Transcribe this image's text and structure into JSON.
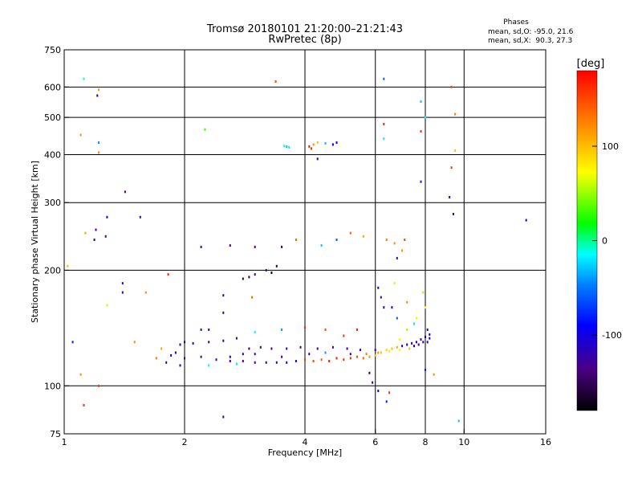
{
  "chart_data": {
    "type": "scatter",
    "title": "Tromsø 20180101 21:20:00–21:21:43",
    "subtitle": "RwPretec (8p)",
    "info_lines": [
      "Phases",
      "mean, sd,O: -95.0, 21.6",
      "mean, sd,X:  90.3, 27.3"
    ],
    "xlabel": "Frequency [MHz]",
    "ylabel": "Stationary phase Virtual Height [km]",
    "xscale": "log",
    "yscale": "log",
    "xlim": [
      1,
      16
    ],
    "ylim": [
      75,
      750
    ],
    "xticks": [
      1,
      2,
      4,
      6,
      8,
      10,
      16
    ],
    "xtick_labels": [
      "1",
      "2",
      "4",
      "6",
      "8",
      "10",
      "16"
    ],
    "x_gridlines": [
      2,
      4,
      6,
      8,
      10
    ],
    "yticks": [
      75,
      100,
      200,
      300,
      400,
      500,
      600,
      750
    ],
    "ytick_labels": [
      "75",
      "100",
      "200",
      "300",
      "400",
      "500",
      "600",
      "750"
    ],
    "y_gridlines": [
      100,
      200,
      300,
      400,
      500,
      600
    ],
    "colorbar": {
      "label": "[deg]",
      "range": [
        -180,
        180
      ],
      "ticks": [
        100,
        0,
        -100
      ],
      "tick_labels": [
        "100",
        "0",
        "-100"
      ]
    },
    "points": [
      [
        1.12,
        630,
        -5
      ],
      [
        1.1,
        450,
        120
      ],
      [
        1.22,
        590,
        115
      ],
      [
        1.21,
        570,
        -150
      ],
      [
        1.22,
        430,
        -40
      ],
      [
        1.22,
        405,
        120
      ],
      [
        1.42,
        320,
        -130
      ],
      [
        1.28,
        275,
        -110
      ],
      [
        1.55,
        275,
        -120
      ],
      [
        1.2,
        255,
        -130
      ],
      [
        1.27,
        245,
        -140
      ],
      [
        1.13,
        250,
        110
      ],
      [
        1.19,
        240,
        -120
      ],
      [
        2.25,
        465,
        30
      ],
      [
        3.38,
        620,
        150
      ],
      [
        6.3,
        630,
        -60
      ],
      [
        7.8,
        550,
        -30
      ],
      [
        9.3,
        600,
        150
      ],
      [
        8.0,
        500,
        -10
      ],
      [
        9.5,
        510,
        130
      ],
      [
        6.3,
        480,
        170
      ],
      [
        7.8,
        460,
        160
      ],
      [
        6.3,
        440,
        -20
      ],
      [
        9.3,
        370,
        160
      ],
      [
        9.5,
        410,
        100
      ],
      [
        7.8,
        340,
        -80
      ],
      [
        9.2,
        310,
        -90
      ],
      [
        9.4,
        280,
        -110
      ],
      [
        14.3,
        270,
        -100
      ],
      [
        4.3,
        390,
        -120
      ],
      [
        4.1,
        420,
        170
      ],
      [
        4.15,
        415,
        160
      ],
      [
        4.2,
        425,
        120
      ],
      [
        4.3,
        430,
        100
      ],
      [
        4.5,
        428,
        -30
      ],
      [
        4.7,
        425,
        -90
      ],
      [
        4.8,
        430,
        -100
      ],
      [
        3.6,
        420,
        -30
      ],
      [
        3.65,
        418,
        -20
      ],
      [
        3.55,
        421,
        -10
      ],
      [
        2.2,
        230,
        -120
      ],
      [
        2.6,
        232,
        -130
      ],
      [
        3.0,
        230,
        -140
      ],
      [
        3.5,
        230,
        -150
      ],
      [
        3.8,
        240,
        140
      ],
      [
        4.4,
        232,
        -30
      ],
      [
        4.8,
        240,
        -60
      ],
      [
        5.2,
        250,
        140
      ],
      [
        5.6,
        245,
        110
      ],
      [
        6.4,
        240,
        130
      ],
      [
        6.7,
        235,
        120
      ],
      [
        7.1,
        240,
        150
      ],
      [
        7.0,
        225,
        120
      ],
      [
        6.8,
        215,
        -120
      ],
      [
        2.8,
        190,
        -160
      ],
      [
        2.9,
        192,
        -150
      ],
      [
        3.0,
        195,
        -140
      ],
      [
        3.2,
        200,
        -130
      ],
      [
        3.3,
        197,
        -170
      ],
      [
        3.4,
        205,
        -160
      ],
      [
        1.4,
        185,
        -120
      ],
      [
        1.4,
        175,
        -120
      ],
      [
        1.6,
        175,
        120
      ],
      [
        1.82,
        195,
        170
      ],
      [
        2.5,
        155,
        -120
      ],
      [
        2.3,
        140,
        -130
      ],
      [
        2.2,
        140,
        -140
      ],
      [
        2.0,
        130,
        -120
      ],
      [
        1.5,
        130,
        120
      ],
      [
        1.05,
        130,
        -80
      ],
      [
        1.02,
        205,
        100
      ],
      [
        6.3,
        160,
        -110
      ],
      [
        6.6,
        160,
        -100
      ],
      [
        6.8,
        150,
        -60
      ],
      [
        7.2,
        165,
        120
      ],
      [
        7.6,
        150,
        80
      ],
      [
        7.9,
        175,
        50
      ],
      [
        8.0,
        160,
        70
      ],
      [
        7.5,
        145,
        -20
      ],
      [
        7.2,
        140,
        50
      ],
      [
        6.9,
        132,
        70
      ],
      [
        8.1,
        140,
        -110
      ],
      [
        8.1,
        130,
        -120
      ],
      [
        7.7,
        128,
        -120
      ],
      [
        5.0,
        135,
        160
      ],
      [
        5.4,
        140,
        170
      ],
      [
        4.5,
        140,
        150
      ],
      [
        4.0,
        142,
        160
      ],
      [
        3.5,
        140,
        -40
      ],
      [
        3.0,
        138,
        -10
      ],
      [
        6.7,
        185,
        60
      ],
      [
        6.2,
        170,
        -130
      ],
      [
        6.1,
        180,
        -100
      ],
      [
        5.8,
        108,
        -150
      ],
      [
        5.9,
        102,
        -120
      ],
      [
        6.1,
        97,
        -90
      ],
      [
        6.4,
        91,
        -80
      ],
      [
        6.5,
        96,
        160
      ],
      [
        8.0,
        110,
        -80
      ],
      [
        8.4,
        107,
        120
      ],
      [
        1.1,
        107,
        120
      ],
      [
        1.12,
        89,
        160
      ],
      [
        1.22,
        100,
        150
      ],
      [
        2.5,
        83,
        -120
      ],
      [
        9.7,
        81,
        -30
      ],
      [
        2.5,
        172,
        -110
      ],
      [
        2.95,
        170,
        140
      ],
      [
        1.28,
        162,
        60
      ],
      [
        1.7,
        118,
        130
      ],
      [
        1.75,
        125,
        110
      ],
      [
        1.85,
        120,
        -100
      ],
      [
        1.9,
        122,
        -120
      ],
      [
        2.0,
        118,
        -130
      ],
      [
        2.2,
        119,
        -140
      ],
      [
        2.4,
        117,
        -120
      ],
      [
        2.6,
        116,
        -130
      ],
      [
        2.8,
        116,
        -140
      ],
      [
        3.0,
        115,
        -130
      ],
      [
        3.2,
        115,
        -120
      ],
      [
        3.4,
        115,
        -120
      ],
      [
        3.6,
        115,
        -110
      ],
      [
        3.8,
        116,
        -100
      ],
      [
        4.0,
        117,
        160
      ],
      [
        4.2,
        116,
        150
      ],
      [
        4.4,
        117,
        140
      ],
      [
        4.6,
        116,
        170
      ],
      [
        4.8,
        118,
        170
      ],
      [
        5.0,
        117,
        160
      ],
      [
        5.2,
        118,
        160
      ],
      [
        5.4,
        119,
        150
      ],
      [
        5.6,
        118,
        140
      ],
      [
        5.8,
        119,
        120
      ],
      [
        6.0,
        120,
        110
      ],
      [
        6.2,
        122,
        100
      ],
      [
        6.4,
        124,
        90
      ],
      [
        6.6,
        125,
        100
      ],
      [
        6.8,
        126,
        110
      ],
      [
        7.0,
        127,
        -120
      ],
      [
        7.2,
        128,
        -110
      ],
      [
        7.4,
        129,
        -120
      ],
      [
        7.6,
        130,
        -110
      ],
      [
        7.8,
        132,
        -120
      ],
      [
        8.0,
        134,
        -110
      ],
      [
        8.2,
        136,
        -120
      ],
      [
        2.9,
        125,
        -150
      ],
      [
        3.1,
        126,
        -130
      ],
      [
        3.3,
        125,
        -140
      ],
      [
        3.6,
        125,
        -130
      ],
      [
        3.9,
        126,
        -140
      ],
      [
        4.3,
        125,
        -120
      ],
      [
        4.7,
        126,
        -130
      ],
      [
        5.1,
        125,
        -110
      ],
      [
        5.5,
        124,
        -120
      ],
      [
        6.0,
        124,
        -130
      ],
      [
        1.95,
        128,
        -110
      ],
      [
        2.1,
        129,
        -120
      ],
      [
        2.3,
        130,
        -140
      ],
      [
        2.5,
        131,
        -120
      ],
      [
        2.7,
        133,
        -130
      ],
      [
        1.8,
        115,
        -120
      ],
      [
        1.95,
        113,
        -110
      ],
      [
        2.3,
        113,
        -10
      ],
      [
        2.7,
        114,
        -20
      ],
      [
        2.6,
        119,
        -100
      ],
      [
        2.8,
        121,
        -110
      ],
      [
        3.0,
        121,
        -120
      ],
      [
        3.5,
        119,
        -130
      ],
      [
        4.1,
        121,
        -120
      ],
      [
        4.5,
        122,
        -40
      ],
      [
        5.2,
        121,
        -130
      ],
      [
        5.7,
        121,
        130
      ],
      [
        6.1,
        122,
        120
      ],
      [
        6.5,
        123,
        80
      ],
      [
        6.9,
        124,
        70
      ],
      [
        7.3,
        125,
        100
      ],
      [
        7.5,
        127,
        -130
      ],
      [
        7.9,
        130,
        -120
      ],
      [
        8.2,
        133,
        -100
      ]
    ]
  }
}
